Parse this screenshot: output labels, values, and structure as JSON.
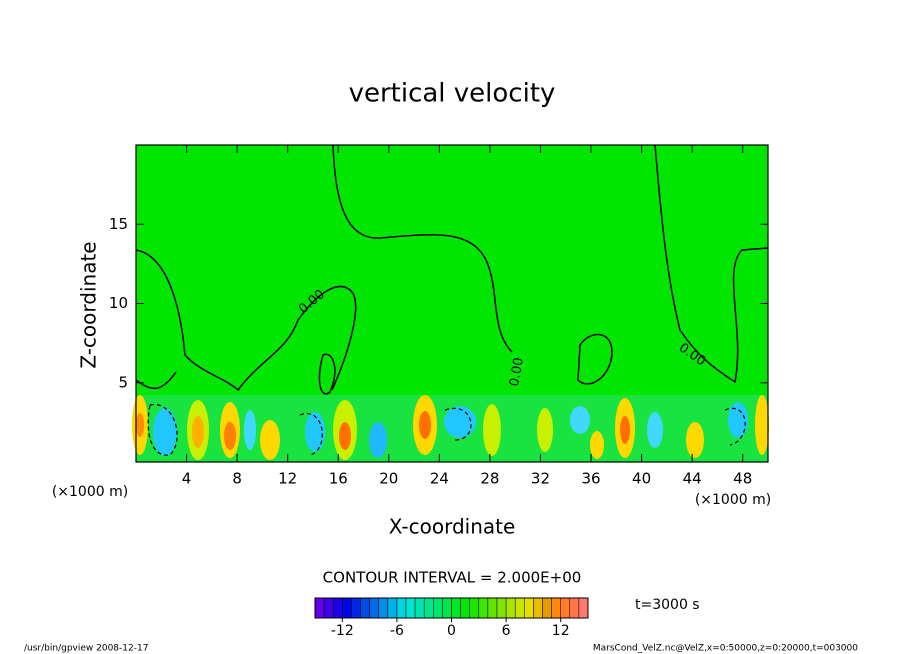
{
  "chart_data": {
    "type": "contour",
    "title": "vertical velocity",
    "x_label": "X-coordinate",
    "y_label": "Z-coordinate",
    "x_unit": "(×1000 m)",
    "y_unit": "(×1000 m)",
    "xlim": [
      0,
      50
    ],
    "xticks": [
      4,
      8,
      12,
      16,
      20,
      24,
      28,
      32,
      36,
      40,
      44,
      48
    ],
    "ylim": [
      0,
      20
    ],
    "yticks": [
      5,
      10,
      15
    ],
    "contour_labels": [
      "0.00",
      "0.00",
      "0.00"
    ],
    "contour_interval_text": "CONTOUR INTERVAL = 2.000E+00",
    "time_text": "t=3000 s",
    "colorbar": {
      "lim": [
        -15,
        15
      ],
      "step": 1,
      "ticks": [
        -12,
        -6,
        0,
        6,
        12
      ]
    },
    "footer_left": "/usr/bin/gpview  2008-12-17",
    "footer_right": "MarsCond_VelZ.nc@VelZ,x=0:50000,z=0:20000,t=003000"
  }
}
